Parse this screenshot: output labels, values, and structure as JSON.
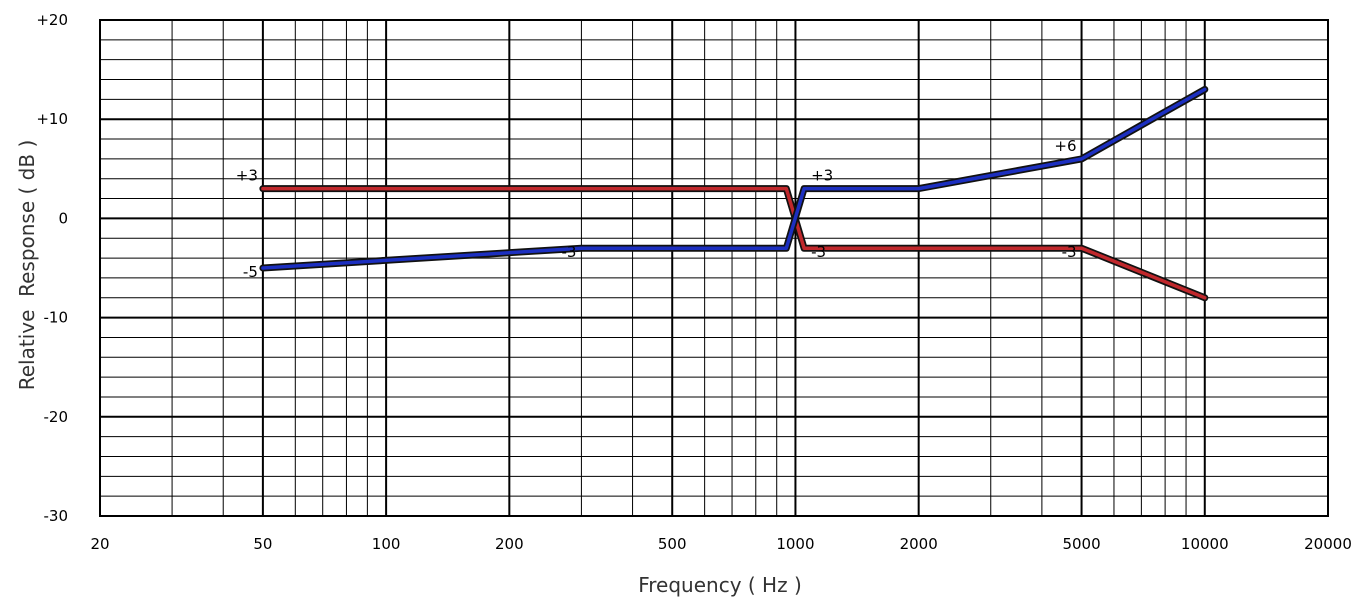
{
  "chart_data": {
    "type": "line",
    "title": "",
    "xlabel": "Frequency ( Hz )",
    "ylabel": "Relative  Response ( dB )",
    "xscale": "log",
    "xlim": [
      20,
      20000
    ],
    "ylim": [
      -30,
      20
    ],
    "grid": true,
    "x_tick_labels": [
      "20",
      "50",
      "100",
      "200",
      "500",
      "1000",
      "2000",
      "5000",
      "10000",
      "20000"
    ],
    "x_tick_values": [
      20,
      50,
      100,
      200,
      500,
      1000,
      2000,
      5000,
      10000,
      20000
    ],
    "y_tick_labels": [
      "+20",
      "+10",
      "0",
      "-10",
      "-20",
      "-30"
    ],
    "y_tick_values": [
      20,
      10,
      0,
      -10,
      -20,
      -30
    ],
    "series": [
      {
        "color": "#c0282c",
        "points": [
          [
            50,
            3
          ],
          [
            950,
            3
          ],
          [
            1050,
            -3
          ],
          [
            5000,
            -3
          ],
          [
            10000,
            -8
          ]
        ]
      },
      {
        "color": "#1c2fc0",
        "points": [
          [
            50,
            -5
          ],
          [
            300,
            -3
          ],
          [
            950,
            -3
          ],
          [
            1050,
            3
          ],
          [
            2000,
            3
          ],
          [
            5000,
            6
          ],
          [
            10000,
            13
          ]
        ]
      }
    ],
    "annotations": [
      {
        "text": "+3",
        "x": 50,
        "y": 3,
        "align": "end"
      },
      {
        "text": "-5",
        "x": 50,
        "y": -5,
        "align": "end"
      },
      {
        "text": "-3",
        "x": 300,
        "y": -3,
        "align": "end"
      },
      {
        "text": "+3",
        "x": 1050,
        "y": 3,
        "align": "start"
      },
      {
        "text": "-3",
        "x": 1050,
        "y": -3,
        "align": "start"
      },
      {
        "text": "+6",
        "x": 5000,
        "y": 6,
        "align": "end"
      },
      {
        "text": "-3",
        "x": 5000,
        "y": -3,
        "align": "end"
      }
    ]
  }
}
